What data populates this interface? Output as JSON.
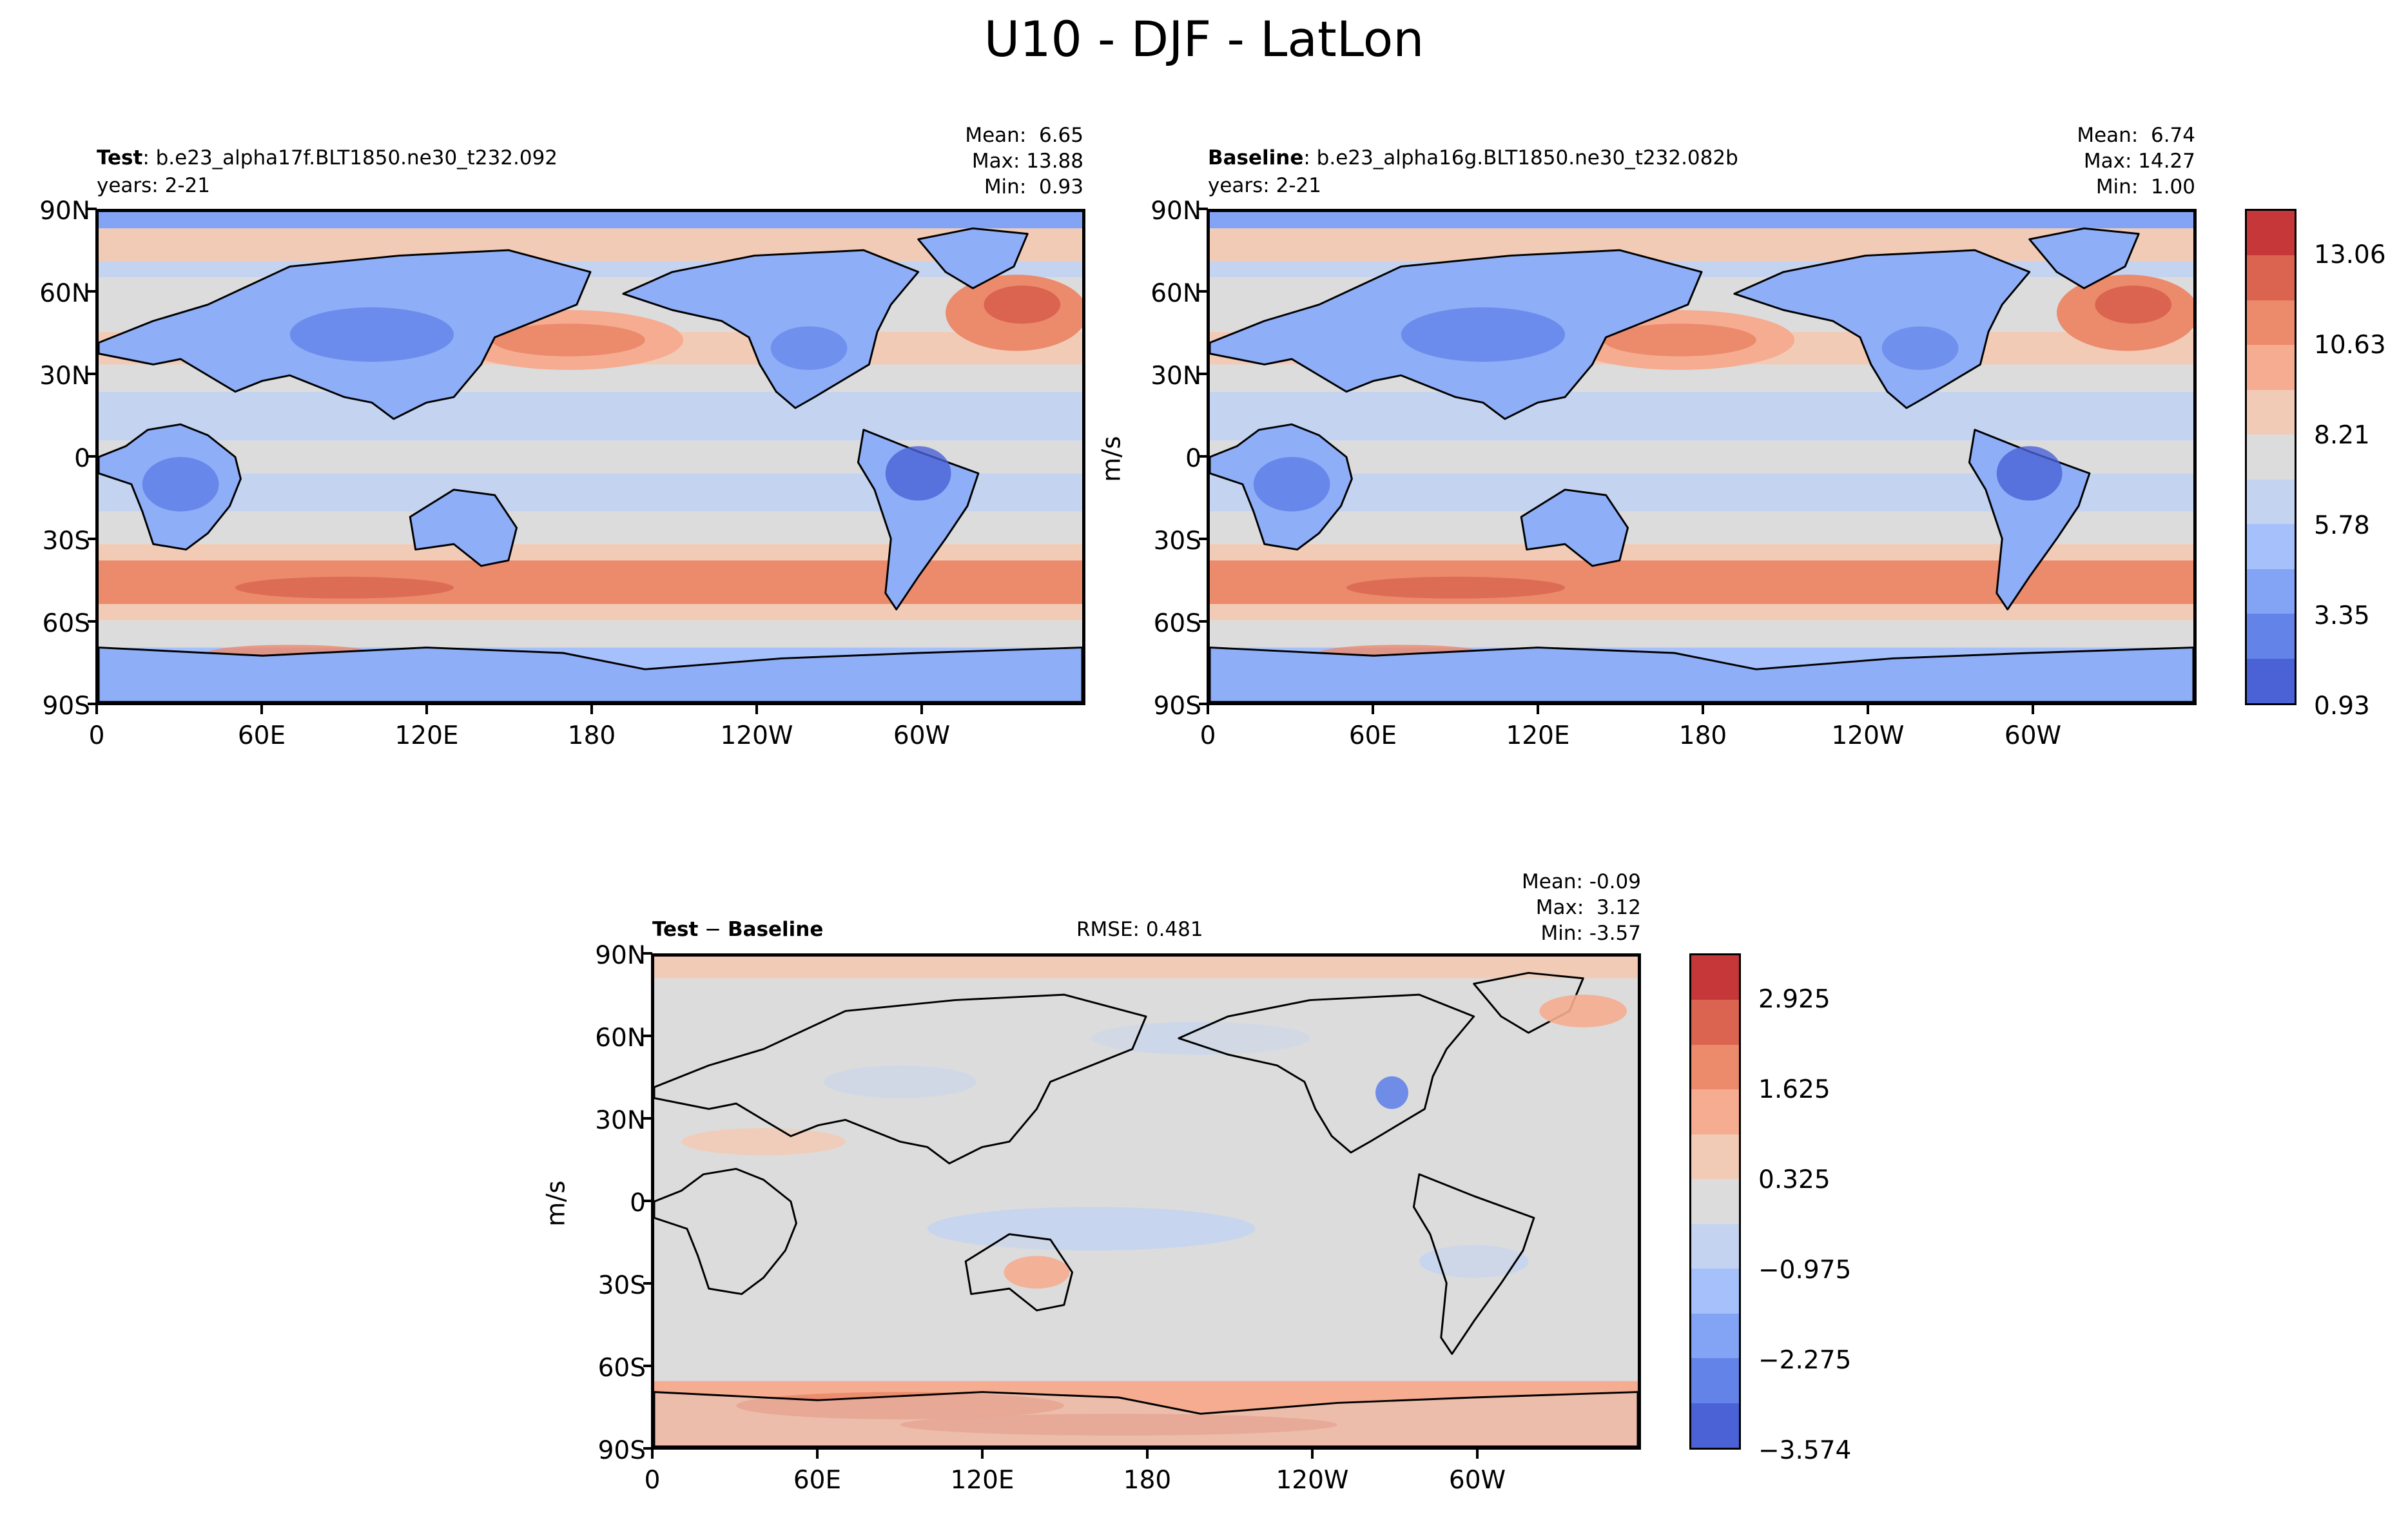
{
  "figure": {
    "title": "U10 - DJF - LatLon"
  },
  "panels": {
    "test": {
      "label_bold": "Test",
      "label_rest": ": b.e23_alpha17f.BLT1850.ne30_t232.092",
      "years": "years: 2-21",
      "stats": "Mean:  6.65\nMax: 13.88\nMin:  0.93",
      "field": "absolute"
    },
    "baseline": {
      "label_bold": "Baseline",
      "label_rest": ": b.e23_alpha16g.BLT1850.ne30_t232.082b",
      "years": "years: 2-21",
      "stats": "Mean:  6.74\nMax: 14.27\nMin:  1.00",
      "units": "m/s",
      "field": "absolute"
    },
    "diff": {
      "label_bold_1": "Test",
      "label_sep": " − ",
      "label_bold_2": "Baseline",
      "rmse": "RMSE: 0.481",
      "stats": "Mean: -0.09\nMax:  3.12\nMin: -3.57",
      "units": "m/s",
      "field": "difference"
    }
  },
  "axes": {
    "lat_ticks": [
      "90N",
      "60N",
      "30N",
      "0",
      "30S",
      "60S",
      "90S"
    ],
    "lon_ticks": [
      "0",
      "60E",
      "120E",
      "180",
      "120W",
      "60W"
    ]
  },
  "colorbars": {
    "absolute": {
      "ticks": [
        "0.93",
        "3.35",
        "5.78",
        "8.21",
        "10.63",
        "13.06"
      ],
      "colors": [
        "#4a62d6",
        "#6383e8",
        "#83a4f5",
        "#a5c0fb",
        "#c4d4f0",
        "#dcdcdc",
        "#f2cbb6",
        "#f5ac90",
        "#ec8a6c",
        "#da6450",
        "#c6373a"
      ]
    },
    "difference": {
      "ticks": [
        "−3.574",
        "−2.275",
        "−0.975",
        "0.325",
        "1.625",
        "2.925"
      ],
      "colors": [
        "#4a62d6",
        "#6383e8",
        "#83a4f5",
        "#a5c0fb",
        "#c4d4f0",
        "#dcdcdc",
        "#f2cbb6",
        "#f5ac90",
        "#ec8a6c",
        "#da6450",
        "#c6373a"
      ]
    }
  }
}
